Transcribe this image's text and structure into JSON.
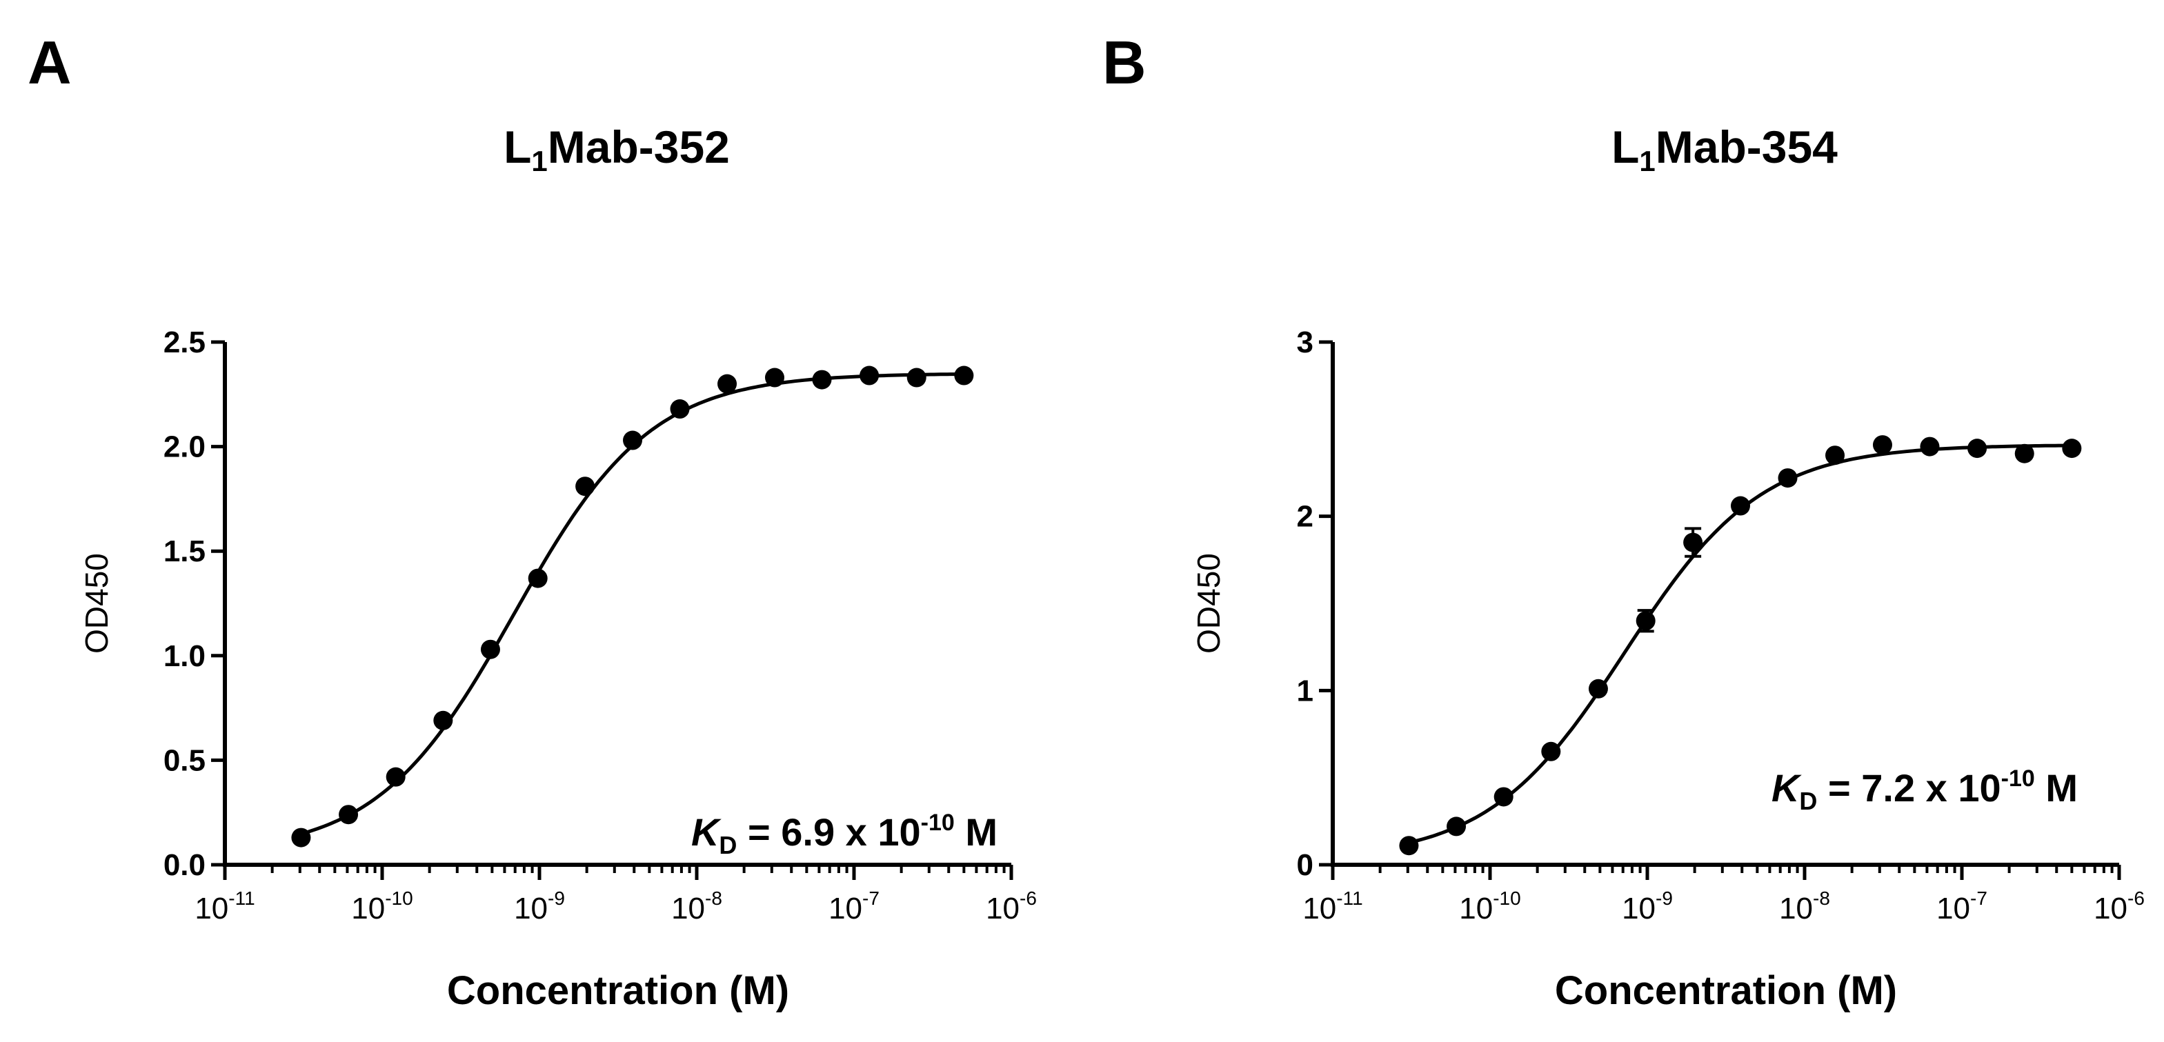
{
  "panels": [
    {
      "letter": "A",
      "title_main": "L",
      "title_sub": "1",
      "title_rest": "Mab-352"
    },
    {
      "letter": "B",
      "title_main": "L",
      "title_sub": "1",
      "title_rest": "Mab-354"
    }
  ],
  "chart_data": [
    {
      "type": "scatter",
      "title": "L1Mab-352",
      "xlabel": "Concentration (M)",
      "ylabel": "OD450",
      "xscale": "log",
      "xlim": [
        1e-11,
        1e-06
      ],
      "ylim": [
        0,
        2.5
      ],
      "yticks": [
        0,
        0.5,
        1,
        1.5,
        2,
        2.5
      ],
      "ytick_labels": [
        "0.0",
        "0.5",
        "1.0",
        "1.5",
        "2.0",
        "2.5"
      ],
      "xtick_exponents": [
        "-11",
        "-10",
        "-9",
        "-8",
        "-7",
        "-6"
      ],
      "xtick_base": "10",
      "x": [
        3.05e-11,
        6.1e-11,
        1.22e-10,
        2.44e-10,
        4.88e-10,
        9.77e-10,
        1.95e-09,
        3.91e-09,
        7.81e-09,
        1.56e-08,
        3.13e-08,
        6.25e-08,
        1.25e-07,
        2.5e-07,
        5e-07
      ],
      "y": [
        0.13,
        0.24,
        0.42,
        0.69,
        1.03,
        1.37,
        1.81,
        2.03,
        2.18,
        2.3,
        2.33,
        2.32,
        2.34,
        2.33,
        2.34
      ],
      "errors": [
        0,
        0,
        0,
        0,
        0,
        0,
        0,
        0,
        0,
        0,
        0,
        0,
        0,
        0,
        0
      ],
      "fit": {
        "bottom": 0.05,
        "top": 2.35,
        "ec50": 6.9e-10,
        "hill": 1.0
      },
      "annotation": {
        "k": "K",
        "sub": "D",
        "text": " = 6.9 x 10",
        "exp": "-10",
        "unit": " M"
      }
    },
    {
      "type": "scatter",
      "title": "L1Mab-354",
      "xlabel": "Concentration (M)",
      "ylabel": "OD450",
      "xscale": "log",
      "xlim": [
        1e-11,
        1e-06
      ],
      "ylim": [
        0,
        3
      ],
      "yticks": [
        0,
        1,
        2,
        3
      ],
      "ytick_labels": [
        "0",
        "1",
        "2",
        "3"
      ],
      "xtick_exponents": [
        "-11",
        "-10",
        "-9",
        "-8",
        "-7",
        "-6"
      ],
      "xtick_base": "10",
      "x": [
        3.05e-11,
        6.1e-11,
        1.22e-10,
        2.44e-10,
        4.88e-10,
        9.77e-10,
        1.95e-09,
        3.91e-09,
        7.81e-09,
        1.56e-08,
        3.13e-08,
        6.25e-08,
        1.25e-07,
        2.5e-07,
        5e-07
      ],
      "y": [
        0.11,
        0.22,
        0.39,
        0.65,
        1.01,
        1.4,
        1.85,
        2.06,
        2.22,
        2.35,
        2.41,
        2.4,
        2.39,
        2.36,
        2.39
      ],
      "errors": [
        0,
        0,
        0,
        0,
        0,
        0.06,
        0.08,
        0,
        0,
        0,
        0,
        0,
        0,
        0,
        0
      ],
      "fit": {
        "bottom": 0.03,
        "top": 2.41,
        "ec50": 7.2e-10,
        "hill": 1.0
      },
      "annotation": {
        "k": "K",
        "sub": "D",
        "text": " = 7.2 x 10",
        "exp": "-10",
        "unit": " M"
      }
    }
  ]
}
